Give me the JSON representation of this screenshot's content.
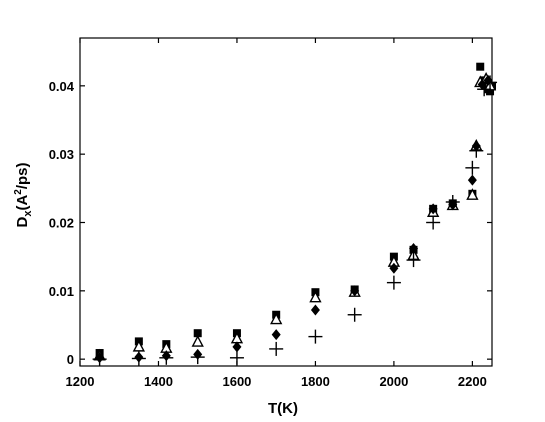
{
  "chart_data": {
    "type": "scatter",
    "xlabel": "T(K)",
    "ylabel": {
      "base": "D",
      "sub": "x",
      "open": "(A",
      "sup": "2",
      "close": "/ps)"
    },
    "xlim": [
      1200,
      2250
    ],
    "ylim": [
      -0.001,
      0.047
    ],
    "xticks": [
      1200,
      1400,
      1600,
      1800,
      2000,
      2200
    ],
    "yticks": [
      0,
      0.01,
      0.02,
      0.03,
      0.04
    ],
    "xtick_labels": [
      "1200",
      "1400",
      "1600",
      "1800",
      "2000",
      "2200"
    ],
    "ytick_labels": [
      "0",
      "0.01",
      "0.02",
      "0.03",
      "0.04"
    ],
    "grid": false,
    "legend": "none",
    "series": [
      {
        "marker": "square",
        "points": [
          [
            1250,
            0.0009
          ],
          [
            1350,
            0.0026
          ],
          [
            1420,
            0.0022
          ],
          [
            1500,
            0.0038
          ],
          [
            1600,
            0.0038
          ],
          [
            1700,
            0.0065
          ],
          [
            1800,
            0.0098
          ],
          [
            1900,
            0.0102
          ],
          [
            2000,
            0.015
          ],
          [
            2050,
            0.016
          ],
          [
            2100,
            0.022
          ],
          [
            2150,
            0.0228
          ],
          [
            2200,
            0.0242
          ],
          [
            2220,
            0.0428
          ],
          [
            2230,
            0.0408
          ],
          [
            2240,
            0.0395
          ],
          [
            2245,
            0.0392
          ],
          [
            2250,
            0.04
          ]
        ]
      },
      {
        "marker": "triangle",
        "points": [
          [
            1250,
            0.0005
          ],
          [
            1350,
            0.0018
          ],
          [
            1420,
            0.0016
          ],
          [
            1500,
            0.0025
          ],
          [
            1600,
            0.003
          ],
          [
            1700,
            0.0058
          ],
          [
            1800,
            0.009
          ],
          [
            1900,
            0.0098
          ],
          [
            2000,
            0.0142
          ],
          [
            2050,
            0.0152
          ],
          [
            2100,
            0.0215
          ],
          [
            2150,
            0.0225
          ],
          [
            2200,
            0.024
          ],
          [
            2210,
            0.0312
          ],
          [
            2220,
            0.0405
          ],
          [
            2235,
            0.041
          ],
          [
            2245,
            0.04
          ]
        ]
      },
      {
        "marker": "diamond",
        "points": [
          [
            1250,
            0.0002
          ],
          [
            1350,
            0.0003
          ],
          [
            1420,
            0.0005
          ],
          [
            1500,
            0.0007
          ],
          [
            1600,
            0.0018
          ],
          [
            1700,
            0.0036
          ],
          [
            1800,
            0.0072
          ],
          [
            1900,
            0.01
          ],
          [
            2000,
            0.0133
          ],
          [
            2050,
            0.0162
          ],
          [
            2100,
            0.022
          ],
          [
            2150,
            0.0226
          ],
          [
            2200,
            0.0262
          ],
          [
            2210,
            0.0312
          ],
          [
            2225,
            0.0402
          ],
          [
            2240,
            0.0408
          ]
        ]
      },
      {
        "marker": "plus",
        "points": [
          [
            1250,
            0.0
          ],
          [
            1350,
            0.0001
          ],
          [
            1420,
            0.0002
          ],
          [
            1500,
            0.0003
          ],
          [
            1600,
            0.0002
          ],
          [
            1700,
            0.0015
          ],
          [
            1800,
            0.0033
          ],
          [
            1900,
            0.0065
          ],
          [
            2000,
            0.0112
          ],
          [
            2050,
            0.0145
          ],
          [
            2100,
            0.02
          ],
          [
            2150,
            0.023
          ],
          [
            2200,
            0.028
          ],
          [
            2210,
            0.0305
          ],
          [
            2230,
            0.0395
          ],
          [
            2245,
            0.0405
          ]
        ]
      }
    ]
  }
}
